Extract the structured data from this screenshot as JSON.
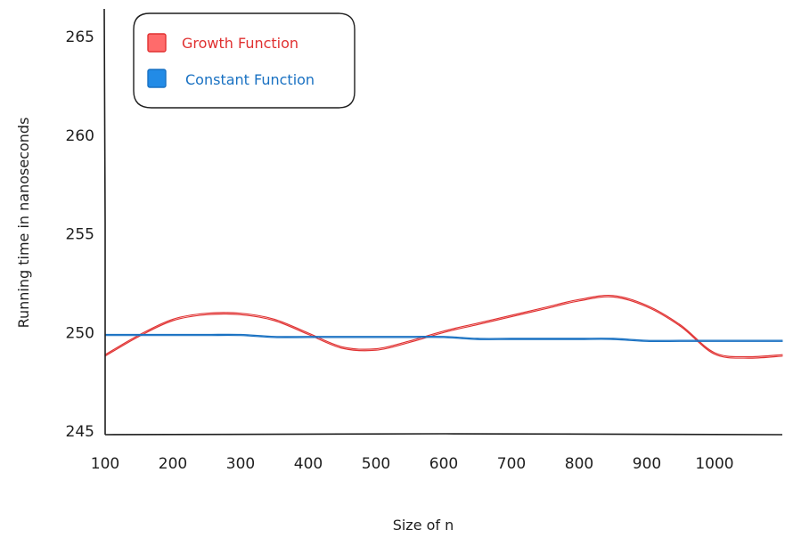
{
  "chart_data": {
    "type": "line",
    "title": "",
    "xlabel": "Size of n",
    "ylabel": "Running time in nanoseconds",
    "x_ticks": [
      100,
      200,
      300,
      400,
      500,
      600,
      700,
      800,
      900,
      1000
    ],
    "y_ticks": [
      245,
      250,
      255,
      260,
      265
    ],
    "xlim": [
      100,
      1100
    ],
    "ylim": [
      245,
      265.5
    ],
    "grid": false,
    "legend_position": "top-left",
    "x": [
      100,
      150,
      200,
      250,
      300,
      350,
      400,
      450,
      500,
      550,
      600,
      650,
      700,
      750,
      800,
      850,
      900,
      950,
      1000,
      1050,
      1100
    ],
    "series": [
      {
        "name": "Growth Function",
        "color": "#e03131",
        "values": [
          248.8,
          249.8,
          250.6,
          250.9,
          250.9,
          250.6,
          249.9,
          249.2,
          249.1,
          249.5,
          250.0,
          250.4,
          250.8,
          251.2,
          251.6,
          251.8,
          251.3,
          250.3,
          248.9,
          248.7,
          248.8
        ]
      },
      {
        "name": "Constant Function",
        "color": "#1971c2",
        "values": [
          249.9,
          249.9,
          249.9,
          249.9,
          249.9,
          249.8,
          249.8,
          249.8,
          249.8,
          249.8,
          249.8,
          249.7,
          249.7,
          249.7,
          249.7,
          249.7,
          249.6,
          249.6,
          249.6,
          249.6,
          249.6
        ]
      }
    ]
  }
}
